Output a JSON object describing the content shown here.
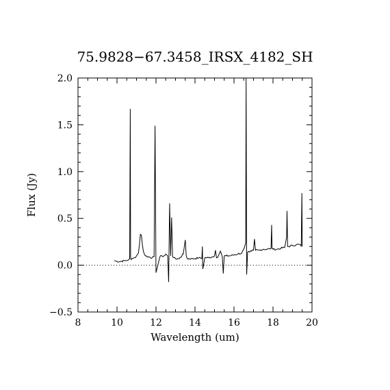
{
  "chart_data": {
    "type": "line",
    "title": "75.9828−67.3458_IRSX_4182_SH",
    "xlabel": "Wavelength (um)",
    "ylabel": "Flux (Jy)",
    "xlim": [
      8,
      20
    ],
    "ylim": [
      -0.5,
      2.0
    ],
    "x_ticks": [
      8,
      10,
      12,
      14,
      16,
      18,
      20
    ],
    "x_tick_labels": [
      "8",
      "10",
      "12",
      "14",
      "16",
      "18",
      "20"
    ],
    "y_ticks": [
      -0.5,
      0.0,
      0.5,
      1.0,
      1.5,
      2.0
    ],
    "y_tick_labels": [
      "−0.5",
      "0.0",
      "0.5",
      "1.0",
      "1.5",
      "2.0"
    ],
    "grid": false,
    "reference_line": {
      "y": 0.0,
      "style": "dotted"
    },
    "series": [
      {
        "x": [
          9.85,
          10.0,
          10.2,
          10.4,
          10.5,
          10.6,
          10.65,
          10.68,
          10.7,
          10.72,
          10.8,
          10.9,
          11.0,
          11.1,
          11.15,
          11.2,
          11.25,
          11.3,
          11.35,
          11.45,
          11.6,
          11.8,
          11.9,
          11.95,
          12.0,
          12.2,
          12.3,
          12.35,
          12.4,
          12.5,
          12.6,
          12.65,
          12.7,
          12.75,
          12.8,
          12.85,
          12.9,
          13.0,
          13.2,
          13.4,
          13.5,
          13.55,
          13.6,
          13.8,
          14.0,
          14.2,
          14.35,
          14.38,
          14.4,
          14.5,
          14.7,
          14.9,
          15.0,
          15.05,
          15.1,
          15.2,
          15.3,
          15.4,
          15.45,
          15.5,
          15.6,
          15.8,
          16.0,
          16.2,
          16.4,
          16.5,
          16.55,
          16.6,
          16.62,
          16.65,
          16.7,
          16.8,
          16.9,
          17.0,
          17.05,
          17.1,
          17.3,
          17.5,
          17.7,
          17.9,
          17.93,
          17.95,
          18.0,
          18.2,
          18.4,
          18.6,
          18.7,
          18.72,
          18.75,
          18.8,
          19.0,
          19.2,
          19.4,
          19.45,
          19.48,
          19.5
        ],
        "y": [
          0.05,
          0.04,
          0.04,
          0.05,
          0.05,
          0.06,
          0.07,
          1.67,
          0.08,
          0.06,
          0.07,
          0.08,
          0.1,
          0.13,
          0.22,
          0.33,
          0.32,
          0.22,
          0.15,
          0.1,
          0.09,
          0.08,
          0.09,
          1.49,
          -0.08,
          0.09,
          0.1,
          0.09,
          0.1,
          0.12,
          0.1,
          -0.18,
          0.66,
          0.1,
          0.51,
          0.09,
          0.08,
          0.07,
          0.07,
          0.12,
          0.27,
          0.1,
          0.07,
          0.07,
          0.07,
          0.08,
          0.07,
          0.2,
          -0.04,
          0.08,
          0.08,
          0.09,
          0.1,
          0.16,
          0.08,
          0.1,
          0.15,
          0.09,
          -0.09,
          0.1,
          0.1,
          0.1,
          0.11,
          0.12,
          0.13,
          0.17,
          0.2,
          0.24,
          2.0,
          -0.1,
          0.14,
          0.14,
          0.15,
          0.16,
          0.28,
          0.16,
          0.16,
          0.17,
          0.17,
          0.18,
          0.43,
          0.18,
          0.17,
          0.17,
          0.18,
          0.19,
          0.3,
          0.58,
          0.2,
          0.2,
          0.21,
          0.22,
          0.22,
          0.2,
          0.77,
          0.2
        ]
      }
    ]
  }
}
